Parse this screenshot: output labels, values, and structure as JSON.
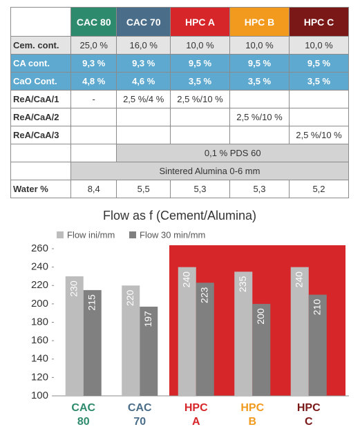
{
  "table": {
    "header": [
      "CAC 80",
      "CAC 70",
      "HPC A",
      "HPC B",
      "HPC C"
    ],
    "header_colors": [
      "#2e8a6c",
      "#4a6d89",
      "#d7262a",
      "#f29a1e",
      "#7a1717"
    ],
    "rows": [
      {
        "label": "Cem. cont.",
        "cells": [
          "25,0 %",
          "16,0 %",
          "10,0 %",
          "10,0 %",
          "10,0 %"
        ]
      },
      {
        "label": "CA cont.",
        "cells": [
          "9,3 %",
          "9,3 %",
          "9,5 %",
          "9,5 %",
          "9,5 %"
        ]
      },
      {
        "label": "CaO Cont.",
        "cells": [
          "4,8 %",
          "4,6 %",
          "3,5 %",
          "3,5 %",
          "3,5 %"
        ]
      },
      {
        "label": "ReA/CaA/1",
        "cells": [
          "-",
          "2,5 %/4 %",
          "2,5 %/10 %",
          null,
          null
        ]
      },
      {
        "label": "ReA/CaA/2",
        "cells": [
          null,
          null,
          null,
          "2,5 %/10 %",
          null
        ]
      },
      {
        "label": "ReA/CaA/3",
        "cells": [
          null,
          null,
          null,
          null,
          "2,5 %/10 %"
        ]
      },
      {
        "label": "Water %",
        "cells": [
          "8,4",
          "5,5",
          "5,3",
          "5,3",
          "5,2"
        ]
      }
    ],
    "notes": [
      "0,1 % PDS 60",
      "Sintered Alumina 0-6 mm"
    ]
  },
  "chart_data": {
    "type": "bar",
    "title": "Flow as f (Cement/Alumina)",
    "categories": [
      "CAC 80",
      "CAC 70",
      "HPC A",
      "HPC B",
      "HPC C"
    ],
    "category_colors": [
      "#2e8a6c",
      "#4a6d89",
      "#d7262a",
      "#f29a1e",
      "#7a1717"
    ],
    "series": [
      {
        "name": "Flow ini/mm",
        "color": "#bdbdbd",
        "values": [
          230,
          220,
          240,
          235,
          240
        ]
      },
      {
        "name": "Flow 30 min/mm",
        "color": "#808080",
        "values": [
          215,
          197,
          223,
          200,
          210
        ]
      }
    ],
    "ylim": [
      100,
      260
    ],
    "yticks": [
      100,
      120,
      140,
      160,
      180,
      200,
      220,
      240,
      260
    ],
    "grid": false,
    "legend": "top-left"
  }
}
